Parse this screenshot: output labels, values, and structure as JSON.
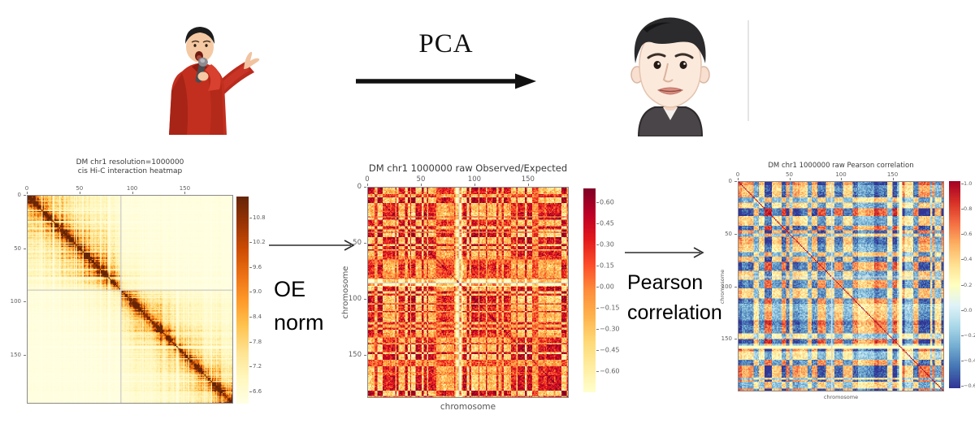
{
  "top": {
    "pca_label": "PCA",
    "presenter_image": "man-in-red-jacket-speaking-with-microphone",
    "avatar_image": "cartoon-male-avatar-face"
  },
  "transitions": [
    {
      "label_lines": [
        "OE",
        "norm"
      ]
    },
    {
      "label_lines": [
        "Pearson",
        "correlation"
      ]
    }
  ],
  "chart_data": [
    {
      "type": "heatmap",
      "title": "DM chr1 resolution=1000000\ncis Hi-C interaction heatmap",
      "xlabel": "",
      "ylabel": "",
      "x_ticks": [
        0,
        50,
        100,
        150
      ],
      "y_ticks": [
        0,
        50,
        100,
        150
      ],
      "axis_range": [
        0,
        196
      ],
      "colormap": "YlOrBr",
      "pattern": "distance-decay-diagonal",
      "colorbar_range": [
        6.3,
        11.3
      ],
      "colorbar_ticks": [
        {
          "label": "10.8",
          "value": 10.8
        },
        {
          "label": "10.2",
          "value": 10.2
        },
        {
          "label": "9.6",
          "value": 9.6
        },
        {
          "label": "9.0",
          "value": 9.0
        },
        {
          "label": "8.4",
          "value": 8.4
        },
        {
          "label": "7.8",
          "value": 7.8
        },
        {
          "label": "7.2",
          "value": 7.2
        },
        {
          "label": "6.6",
          "value": 6.6
        }
      ]
    },
    {
      "type": "heatmap",
      "title": "DM chr1 1000000 raw Observed/Expected",
      "xlabel": "chromosome",
      "ylabel": "chromosome",
      "x_ticks": [
        0,
        50,
        100,
        150
      ],
      "y_ticks": [
        0,
        50,
        100,
        150
      ],
      "axis_range": [
        0,
        188
      ],
      "colormap": "YlOrRd",
      "pattern": "oe-noise",
      "colorbar_range": [
        -0.75,
        0.7
      ],
      "colorbar_ticks": [
        {
          "label": "0.60",
          "value": 0.6
        },
        {
          "label": "0.45",
          "value": 0.45
        },
        {
          "label": "0.30",
          "value": 0.3
        },
        {
          "label": "0.15",
          "value": 0.15
        },
        {
          "label": "0.00",
          "value": 0.0
        },
        {
          "label": "−0.15",
          "value": -0.15
        },
        {
          "label": "−0.30",
          "value": -0.3
        },
        {
          "label": "−0.45",
          "value": -0.45
        },
        {
          "label": "−0.60",
          "value": -0.6
        }
      ]
    },
    {
      "type": "heatmap",
      "title": "DM chr1 1000000 raw Pearson correlation",
      "xlabel": "chromosome",
      "ylabel": "chromosome",
      "x_ticks": [
        0,
        50,
        100,
        150
      ],
      "y_ticks": [
        0,
        50,
        100,
        150
      ],
      "axis_range": [
        0,
        200
      ],
      "colormap": "RdYlBu_r",
      "pattern": "correlation-blocks",
      "colorbar_range": [
        -0.62,
        1.02
      ],
      "colorbar_ticks": [
        {
          "label": "1.0",
          "value": 1.0
        },
        {
          "label": "0.8",
          "value": 0.8
        },
        {
          "label": "0.6",
          "value": 0.6
        },
        {
          "label": "0.4",
          "value": 0.4
        },
        {
          "label": "0.2",
          "value": 0.2
        },
        {
          "label": "0.0",
          "value": 0.0
        },
        {
          "label": "−0.2",
          "value": -0.2
        },
        {
          "label": "−0.4",
          "value": -0.4
        },
        {
          "label": "−0.6",
          "value": -0.6
        }
      ]
    }
  ]
}
